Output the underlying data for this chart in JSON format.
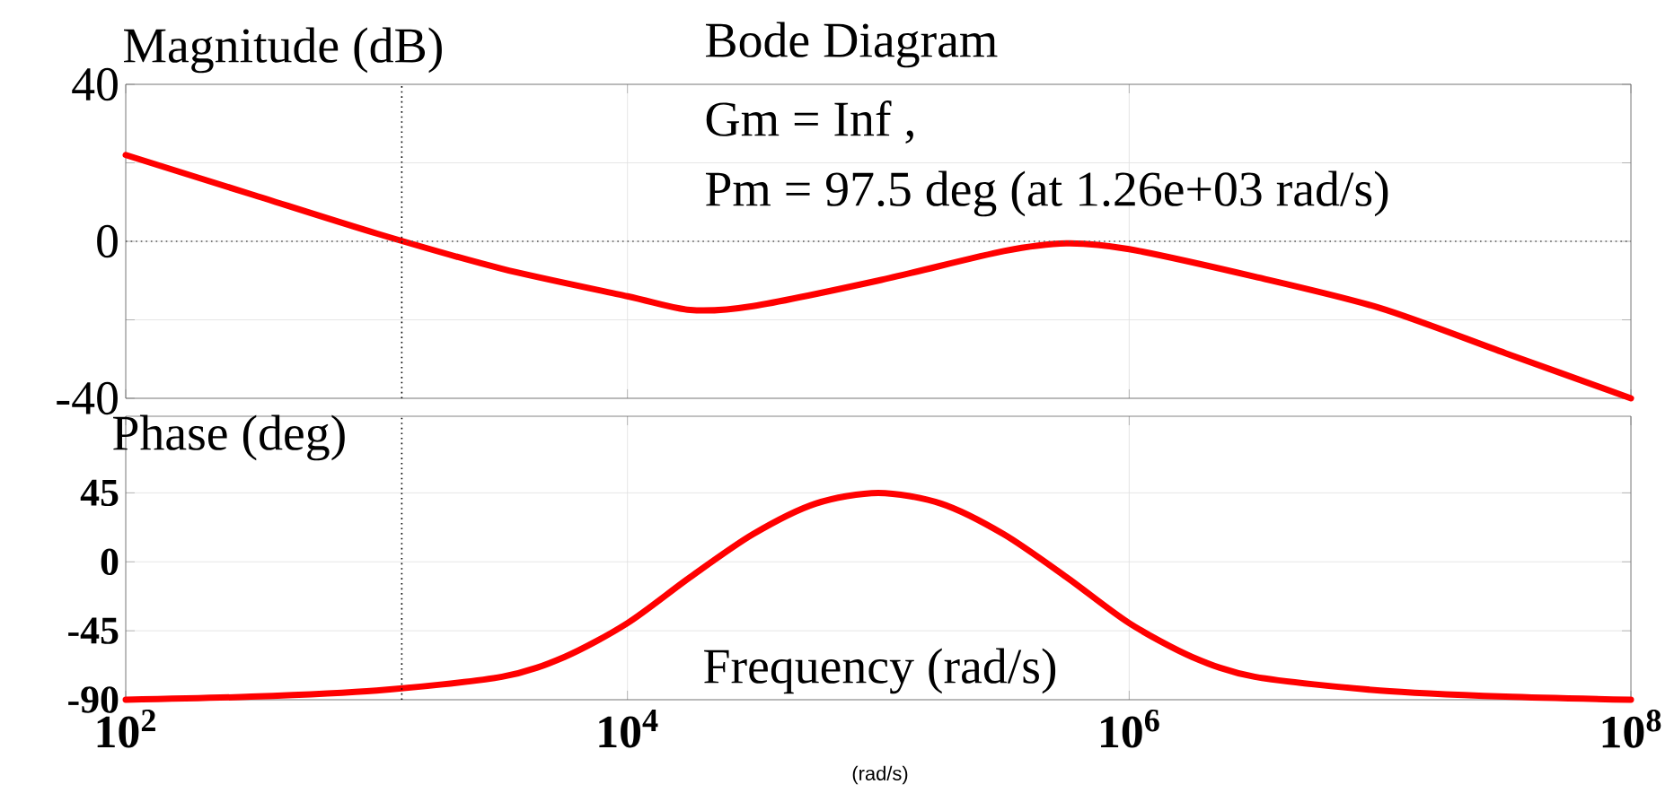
{
  "chart_data": [
    {
      "type": "line",
      "title": "Bode Diagram",
      "ylabel": "Magnitude (dB)",
      "annotations": [
        "Gm = Inf ,",
        "Pm = 97.5 deg (at 1.26e+03 rad/s)"
      ],
      "x": [
        100,
        316,
        1000,
        3162,
        10000,
        17783,
        31623,
        100000,
        316228,
        562341,
        1000000,
        3162278,
        10000000,
        31622777,
        100000000
      ],
      "series": [
        {
          "color": "#ff0000",
          "values": [
            22,
            12,
            2,
            -7,
            -14,
            -17.5,
            -16.5,
            -10,
            -2.5,
            -0.5,
            -2,
            -9,
            -17,
            -28.5,
            -40
          ]
        }
      ],
      "log": "x",
      "xlim": [
        100,
        100000000
      ],
      "xticks": [
        {
          "value": 100,
          "label": null
        },
        {
          "value": 10000,
          "label": null
        },
        {
          "value": 1000000,
          "label": null
        },
        {
          "value": 100000000,
          "label": null
        }
      ],
      "ylim": [
        -40,
        40
      ],
      "yticks": [
        -40,
        {
          "value": -20,
          "label": null
        },
        0,
        {
          "value": 20,
          "label": null
        },
        40
      ],
      "tick_labels": "y",
      "grid": true,
      "line_style": "solid",
      "ref_lines": [
        {
          "axis": "y",
          "value": 0,
          "line_style": "dotted",
          "color": "#555555"
        },
        {
          "axis": "x",
          "value": 1260,
          "line_style": "dotted",
          "color": "#000000"
        }
      ]
    },
    {
      "type": "line",
      "ylabel": "Phase (deg)",
      "xlabel": "Frequency (rad/s)",
      "annotations": [
        "(rad/s)"
      ],
      "x": [
        100,
        316,
        1000,
        3162,
        5623,
        10000,
        17783,
        31623,
        56234,
        100000,
        177828,
        316228,
        562341,
        1000000,
        1778279,
        3162278,
        10000000,
        31622777,
        100000000
      ],
      "series": [
        {
          "color": "#ff0000",
          "values": [
            -90,
            -88,
            -84,
            -75,
            -62,
            -40,
            -10,
            18,
            38,
            45,
            38,
            18,
            -10,
            -40,
            -62,
            -75,
            -84,
            -88,
            -90
          ]
        }
      ],
      "log": "x",
      "xlim": [
        100,
        100000000
      ],
      "xticks": [
        {
          "value": 100,
          "label": "10$^{2}$"
        },
        {
          "value": 10000,
          "label": "10$^{4}$"
        },
        {
          "value": 1000000,
          "label": "10$^{6}$"
        },
        {
          "value": 100000000,
          "label": "10$^{8}$"
        }
      ],
      "ylim": [
        -90,
        95
      ],
      "yticks": [
        -90,
        -45,
        0,
        45
      ],
      "grid": true,
      "line_style": "solid",
      "ref_lines": [
        {
          "axis": "x",
          "value": 1260,
          "line_style": "dotted",
          "color": "#000000"
        }
      ]
    }
  ]
}
